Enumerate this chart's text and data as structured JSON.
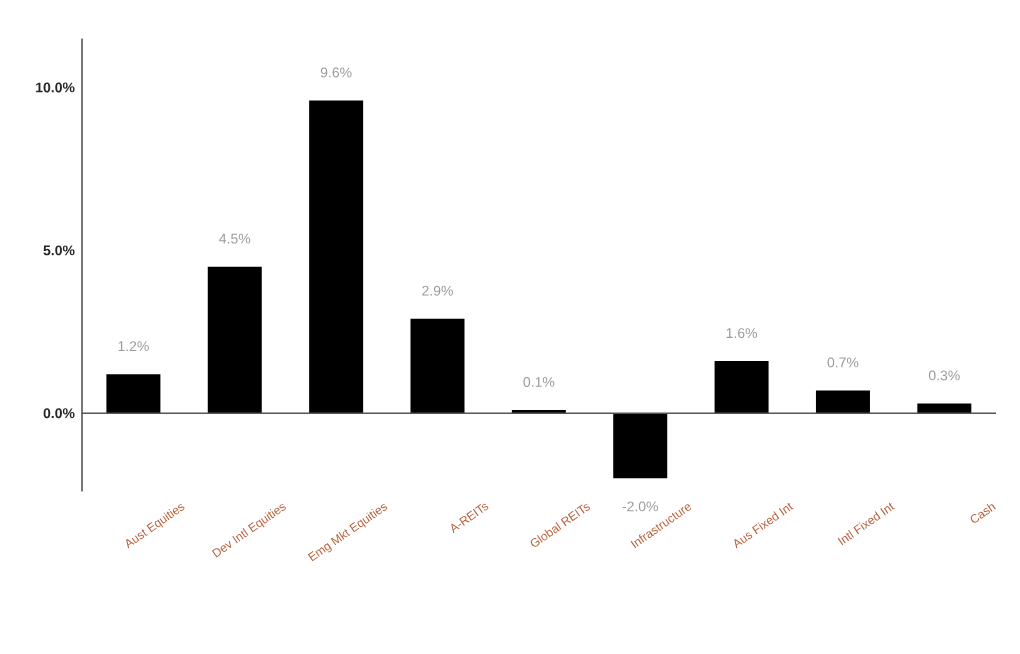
{
  "chart_data": {
    "type": "bar",
    "categories": [
      "Aust Equities",
      "Dev Intl Equities",
      "Emg Mkt Equities",
      "A-REITs",
      "Global REITs",
      "Infrastructure",
      "Aus Fixed Int",
      "Intl Fixed Int",
      "Cash"
    ],
    "values": [
      1.2,
      4.5,
      9.6,
      2.9,
      0.1,
      -2.0,
      1.6,
      0.7,
      0.3
    ],
    "value_labels": [
      "1.2%",
      "4.5%",
      "9.6%",
      "2.9%",
      "0.1%",
      "-2.0%",
      "1.6%",
      "0.7%",
      "0.3%"
    ],
    "color": "#000000",
    "ylim": [
      -2.4,
      11.5
    ],
    "yticks": [
      {
        "value": 0,
        "label": "0.0%"
      },
      {
        "value": 5,
        "label": "5.0%"
      },
      {
        "value": 10,
        "label": "10.0%"
      }
    ],
    "orientation": "vertical"
  }
}
